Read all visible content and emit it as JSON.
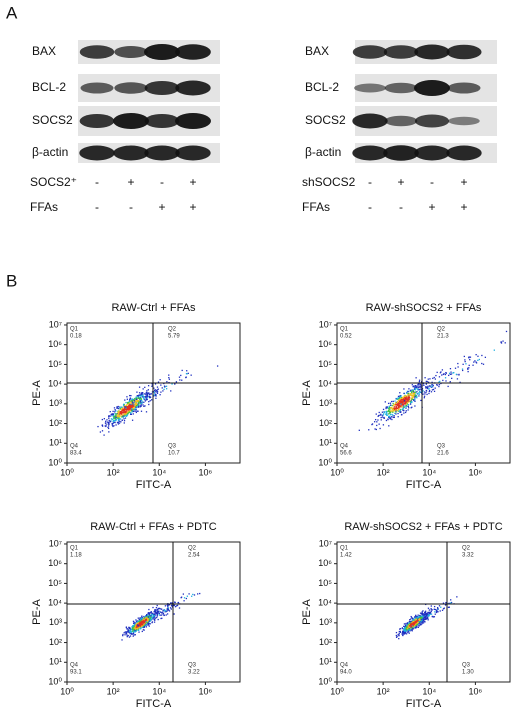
{
  "panel_a": {
    "label": "A",
    "blots": [
      {
        "rows": [
          "BAX",
          "BCL-2",
          "SOCS2",
          "β-actin"
        ],
        "conditions": [
          {
            "name": "SOCS2⁺",
            "signs": [
              "-",
              "+",
              "-",
              "+"
            ]
          },
          {
            "name": "FFAs",
            "signs": [
              "-",
              "-",
              "+",
              "+"
            ]
          }
        ]
      },
      {
        "rows": [
          "BAX",
          "BCL-2",
          "SOCS2",
          "β-actin"
        ],
        "conditions": [
          {
            "name": "shSOCS2",
            "signs": [
              "-",
              "+",
              "-",
              "+"
            ]
          },
          {
            "name": "FFAs",
            "signs": [
              "-",
              "-",
              "+",
              "+"
            ]
          }
        ]
      }
    ]
  },
  "panel_b": {
    "label": "B",
    "x_axis_label": "FITC-A",
    "y_axis_label": "PE-A",
    "x_tick_labels": [
      "10⁰",
      "10²",
      "10⁴",
      "10⁶"
    ],
    "y_tick_labels": [
      "10⁰",
      "10¹",
      "10²",
      "10³",
      "10⁴",
      "10⁵",
      "10⁶",
      "10⁷"
    ],
    "plots": [
      {
        "title": "RAW-Ctrl + FFAs",
        "quadrants": [
          {
            "name": "Q1",
            "value": "0.18"
          },
          {
            "name": "Q2",
            "value": "5.79"
          },
          {
            "name": "Q3",
            "value": "10.7"
          },
          {
            "name": "Q4",
            "value": "83.4"
          }
        ]
      },
      {
        "title": "RAW-shSOCS2 + FFAs",
        "quadrants": [
          {
            "name": "Q1",
            "value": "0.52"
          },
          {
            "name": "Q2",
            "value": "21.3"
          },
          {
            "name": "Q3",
            "value": "21.6"
          },
          {
            "name": "Q4",
            "value": "56.6"
          }
        ]
      },
      {
        "title": "RAW-Ctrl + FFAs + PDTC",
        "quadrants": [
          {
            "name": "Q1",
            "value": "1.18"
          },
          {
            "name": "Q2",
            "value": "2.54"
          },
          {
            "name": "Q3",
            "value": "3.22"
          },
          {
            "name": "Q4",
            "value": "93.1"
          }
        ]
      },
      {
        "title": "RAW-shSOCS2 + FFAs + PDTC",
        "quadrants": [
          {
            "name": "Q1",
            "value": "1.42"
          },
          {
            "name": "Q2",
            "value": "3.32"
          },
          {
            "name": "Q3",
            "value": "1.30"
          },
          {
            "name": "Q4",
            "value": "94.0"
          }
        ]
      }
    ]
  }
}
